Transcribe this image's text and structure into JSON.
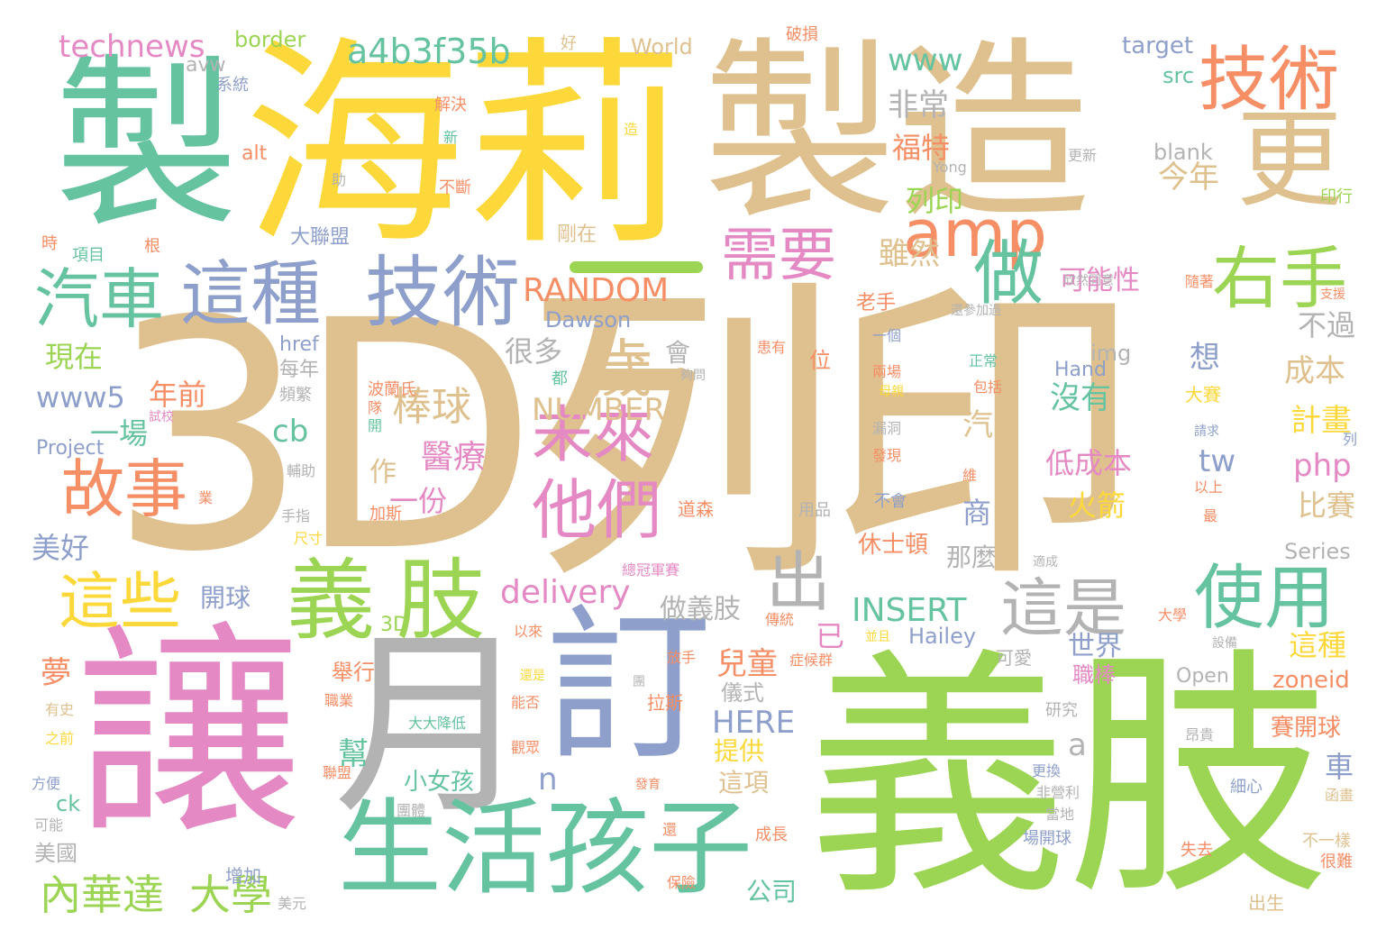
{
  "palette": {
    "tan": "#dfc18f",
    "teal": "#65c3a0",
    "yellow": "#fcd83a",
    "pink": "#e589c4",
    "lime": "#9cd454",
    "blue": "#8d9fca",
    "orange": "#f68e66",
    "gray": "#b3b3b3"
  },
  "words": {
    "w3d_print": "3D列印",
    "w_rang": "讓",
    "w_yizhi_big": "義肢",
    "w_zhi1": "製",
    "w_haili": "海莉",
    "w_zhizao": "製造",
    "w_geng": "更",
    "w_yue": "月",
    "w_ding": "訂",
    "w_shenghuo": "生活",
    "w_haizi": "孩子",
    "w_yi": "義",
    "w_zhi_lime": "肢",
    "w_jishu_top": "技術",
    "w_jishu_mid": "技術",
    "w_zhezhong": "這種",
    "w_qiche": "汽車",
    "w_amp": "amp",
    "w_xuyao": "需要",
    "w_zuo": "做",
    "w_youshou": "右手",
    "w_shiyong": "使用",
    "w_zheshi": "這是",
    "w_chu": "出",
    "w_weilai": "未來",
    "w_tamen": "他們",
    "w_sui": "歲",
    "w_gushi": "故事",
    "w_zhexie": "這些",
    "w_neihuada": "內華達",
    "w_daxue": "大學",
    "w_technews": "technews",
    "w_hash": "a4b3f35b",
    "w_border": "border",
    "w_world": "World",
    "w_target": "target",
    "w_src": "src",
    "w_www": "www",
    "w_feichang": "非常",
    "w_blank": "blank",
    "w_yong": "Yong",
    "w_genxin": "更新",
    "w_fute": "福特",
    "w_jinnian": "今年",
    "w_lieyin": "列印",
    "w_yinxing": "印行",
    "w_random": "RANDOM",
    "w_suiran": "雖然",
    "w_kenengxing": "可能性",
    "w_dawson": "Dawson",
    "w_dalianmeng": "大聯盟",
    "w_gangzai": "剛在",
    "w_laoshou": "老手",
    "w_xinran": "欣然同意",
    "w_buguo": "不過",
    "w_xianzai": "現在",
    "w_www5": "www5",
    "w_hand": "Hand",
    "w_img": "img",
    "w_xiang": "想",
    "w_chengben": "成本",
    "w_hennduo": "很多",
    "w_hui": "會",
    "w_nianqian": "年前",
    "w_bangqiu": "棒球",
    "w_meiyou": "沒有",
    "w_number": "NUMBER",
    "w_jihua": "計畫",
    "w_yichang": "一場",
    "w_cb": "cb",
    "w_qi": "汽",
    "w_project": "Project",
    "w_php": "php",
    "w_tw": "tw",
    "w_yiliao": "醫療",
    "w_dichengben": "低成本",
    "w_zuo2": "作",
    "w_yifen": "一份",
    "w_huojian": "火箭",
    "w_shang": "商",
    "w_bisai": "比賽",
    "w_meihao": "美好",
    "w_xiushidun": "休士頓",
    "w_series": "Series",
    "w_delivery": "delivery",
    "w_nameme": "那麼",
    "w_kaiqiu": "開球",
    "w_zuoyizhi": "做義肢",
    "w_yi2": "已",
    "w_insert": "INSERT",
    "w_3d": "3D",
    "w_hailey": "Hailey",
    "w_zhezhong2": "這種",
    "w_meng": "夢",
    "w_ertong": "兒童",
    "w_shijie": "世界",
    "w_juxing": "舉行",
    "w_yishi": "儀式",
    "w_kaiqiu2": "賽開球",
    "w_zhibang": "職棒",
    "w_zoneid": "zoneid",
    "w_open": "Open",
    "w_here": "HERE",
    "w_bang": "幫",
    "w_tigong": "提供",
    "w_a": "a",
    "w_n": "n",
    "w_zhexiang": "這項",
    "w_xiaonuhai": "小女孩",
    "w_che": "車",
    "w_ck": "ck",
    "w_meiguo": "美國",
    "w_zengjia": "增加",
    "w_gongsi": "公司",
    "w_href": "href",
    "w_meinian": "每年",
    "w_pinfan": "頻繁",
    "w_alt": "alt",
    "w_avw": "avw",
    "w_xitong": "系統",
    "w_jiejue": "解決",
    "w_buduan": "不斷",
    "w_shi": "時",
    "w_xiangmu": "項目",
    "w_gen": "根",
    "w_hao": "好",
    "w_posun": "破損",
    "w_xin": "新",
    "w_zhu": "助",
    "w_zao": "造",
    "w_bolanshi": "波蘭氏",
    "w_dui": "隊",
    "w_kai": "開",
    "w_jiasi": "加斯",
    "w_gougou": "夠問",
    "w_dou": "都",
    "w_wei": "位",
    "w_huanyou": "患有",
    "w_daosen": "道森",
    "w_yongpin": "用品",
    "w_bumian": "不會",
    "w_faxian": "發現",
    "w_loudong": "漏洞",
    "w_liangchang": "兩場",
    "w_muqin": "母親",
    "w_yige": "一個",
    "w_haicanjia": "還參加過",
    "w_zhengchang": "正常",
    "w_baokuo": "包括",
    "w_dasai": "大賽",
    "w_qingqiu": "請求",
    "w_lie": "列",
    "w_yishang": "以上",
    "w_zui": "最",
    "w_wei2": "維",
    "w_shiyingsheng": "適成",
    "w_chichun": "尺寸",
    "w_shouzhi": "手指",
    "w_fuzhu": "輔助",
    "w_ye": "業",
    "w_zongguanjun": "總冠軍賽",
    "w_chuantong": "傳統",
    "w_bingqie": "並且",
    "w_yilai": "以來",
    "w_fangshou": "放手",
    "w_zhenghouqun": "症候群",
    "w_shebei": "設備",
    "w_daxue2": "大學",
    "w_lasi": "拉斯",
    "w_zhiye": "職業",
    "w_dadajiangdi": "大大降低",
    "w_guanzhong": "觀眾",
    "w_nengfou": "能否",
    "w_haishi": "還是",
    "w_tuan": "團",
    "w_fayu": "發育",
    "w_yanjiu": "研究",
    "w_angui": "昂貴",
    "w_xixin": "細心",
    "w_hanhua": "函畫",
    "w_youshi": "有史",
    "w_zhiqian": "之前",
    "w_fangbian": "方便",
    "w_keneng": "可能",
    "w_lianmeng": "聯盟",
    "w_tuanti": "團體",
    "w_geng2": "更換",
    "w_feiyingli": "非營利",
    "w_dangdi": "當地",
    "w_chengzhang": "成長",
    "w_huan": "還",
    "w_changkaiqiu": "場開球",
    "w_shiqu": "失去",
    "w_buyiyang": "不一樣",
    "w_hennan": "很難",
    "w_baoxian": "保險",
    "w_meiyuan": "美元",
    "w_chusheng": "出生",
    "w_suizhe": "隨著",
    "w_zhiyuan": "支援",
    "w_keai": "可愛",
    "w_kuxiao": "試校"
  }
}
